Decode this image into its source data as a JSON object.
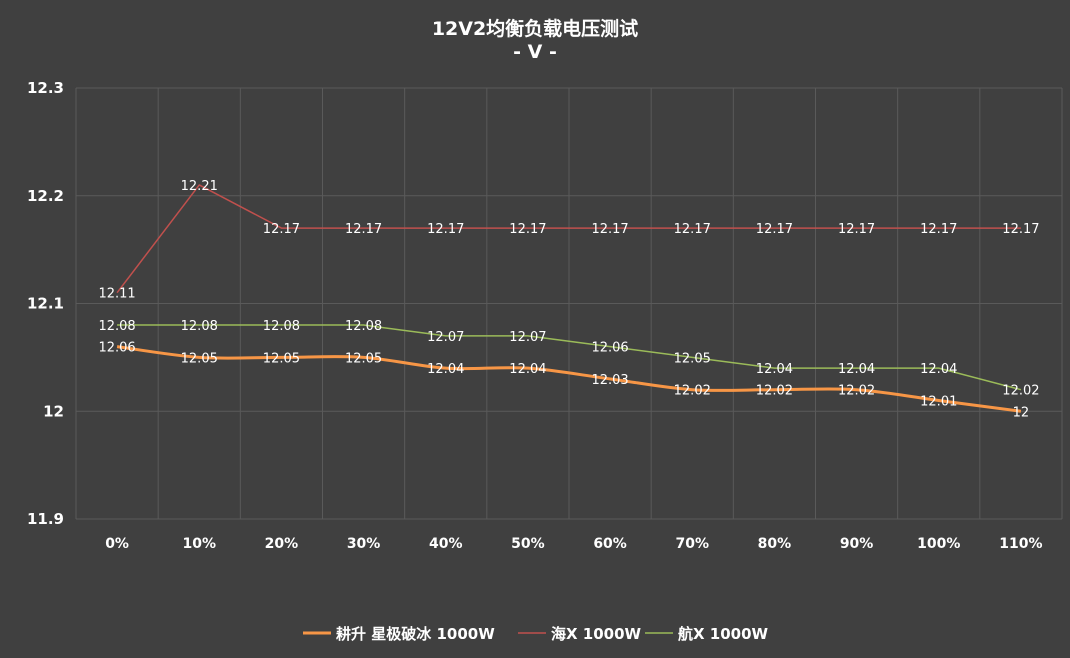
{
  "chart_data": {
    "type": "line",
    "title": "12V2均衡负载电压测试",
    "subtitle": "- V -",
    "categories": [
      "0%",
      "10%",
      "20%",
      "30%",
      "40%",
      "50%",
      "60%",
      "70%",
      "80%",
      "90%",
      "100%",
      "110%"
    ],
    "ylim": [
      11.9,
      12.3
    ],
    "yticks": [
      "11.9",
      "12",
      "12.1",
      "12.2",
      "12.3"
    ],
    "grid": true,
    "legend_position": "bottom",
    "series": [
      {
        "name": "耕升 星极破冰 1000W",
        "color": "#f79646",
        "values": [
          12.06,
          12.05,
          12.05,
          12.05,
          12.04,
          12.04,
          12.03,
          12.02,
          12.02,
          12.02,
          12.01,
          12
        ],
        "labels": [
          "12.06",
          "12.05",
          "12.05",
          "12.05",
          "12.04",
          "12.04",
          "12.03",
          "12.02",
          "12.02",
          "12.02",
          "12.01",
          "12"
        ]
      },
      {
        "name": "海X 1000W",
        "color": "#c0504d",
        "values": [
          12.11,
          12.21,
          12.17,
          12.17,
          12.17,
          12.17,
          12.17,
          12.17,
          12.17,
          12.17,
          12.17,
          12.17
        ],
        "labels": [
          "12.11",
          "12.21",
          "12.17",
          "12.17",
          "12.17",
          "12.17",
          "12.17",
          "12.17",
          "12.17",
          "12.17",
          "12.17",
          "12.17"
        ]
      },
      {
        "name": "航X 1000W",
        "color": "#9bbb59",
        "values": [
          12.08,
          12.08,
          12.08,
          12.08,
          12.07,
          12.07,
          12.06,
          12.05,
          12.04,
          12.04,
          12.04,
          12.02
        ],
        "labels": [
          "12.08",
          "12.08",
          "12.08",
          "12.08",
          "12.07",
          "12.07",
          "12.06",
          "12.05",
          "12.04",
          "12.04",
          "12.04",
          "12.02"
        ]
      }
    ]
  }
}
